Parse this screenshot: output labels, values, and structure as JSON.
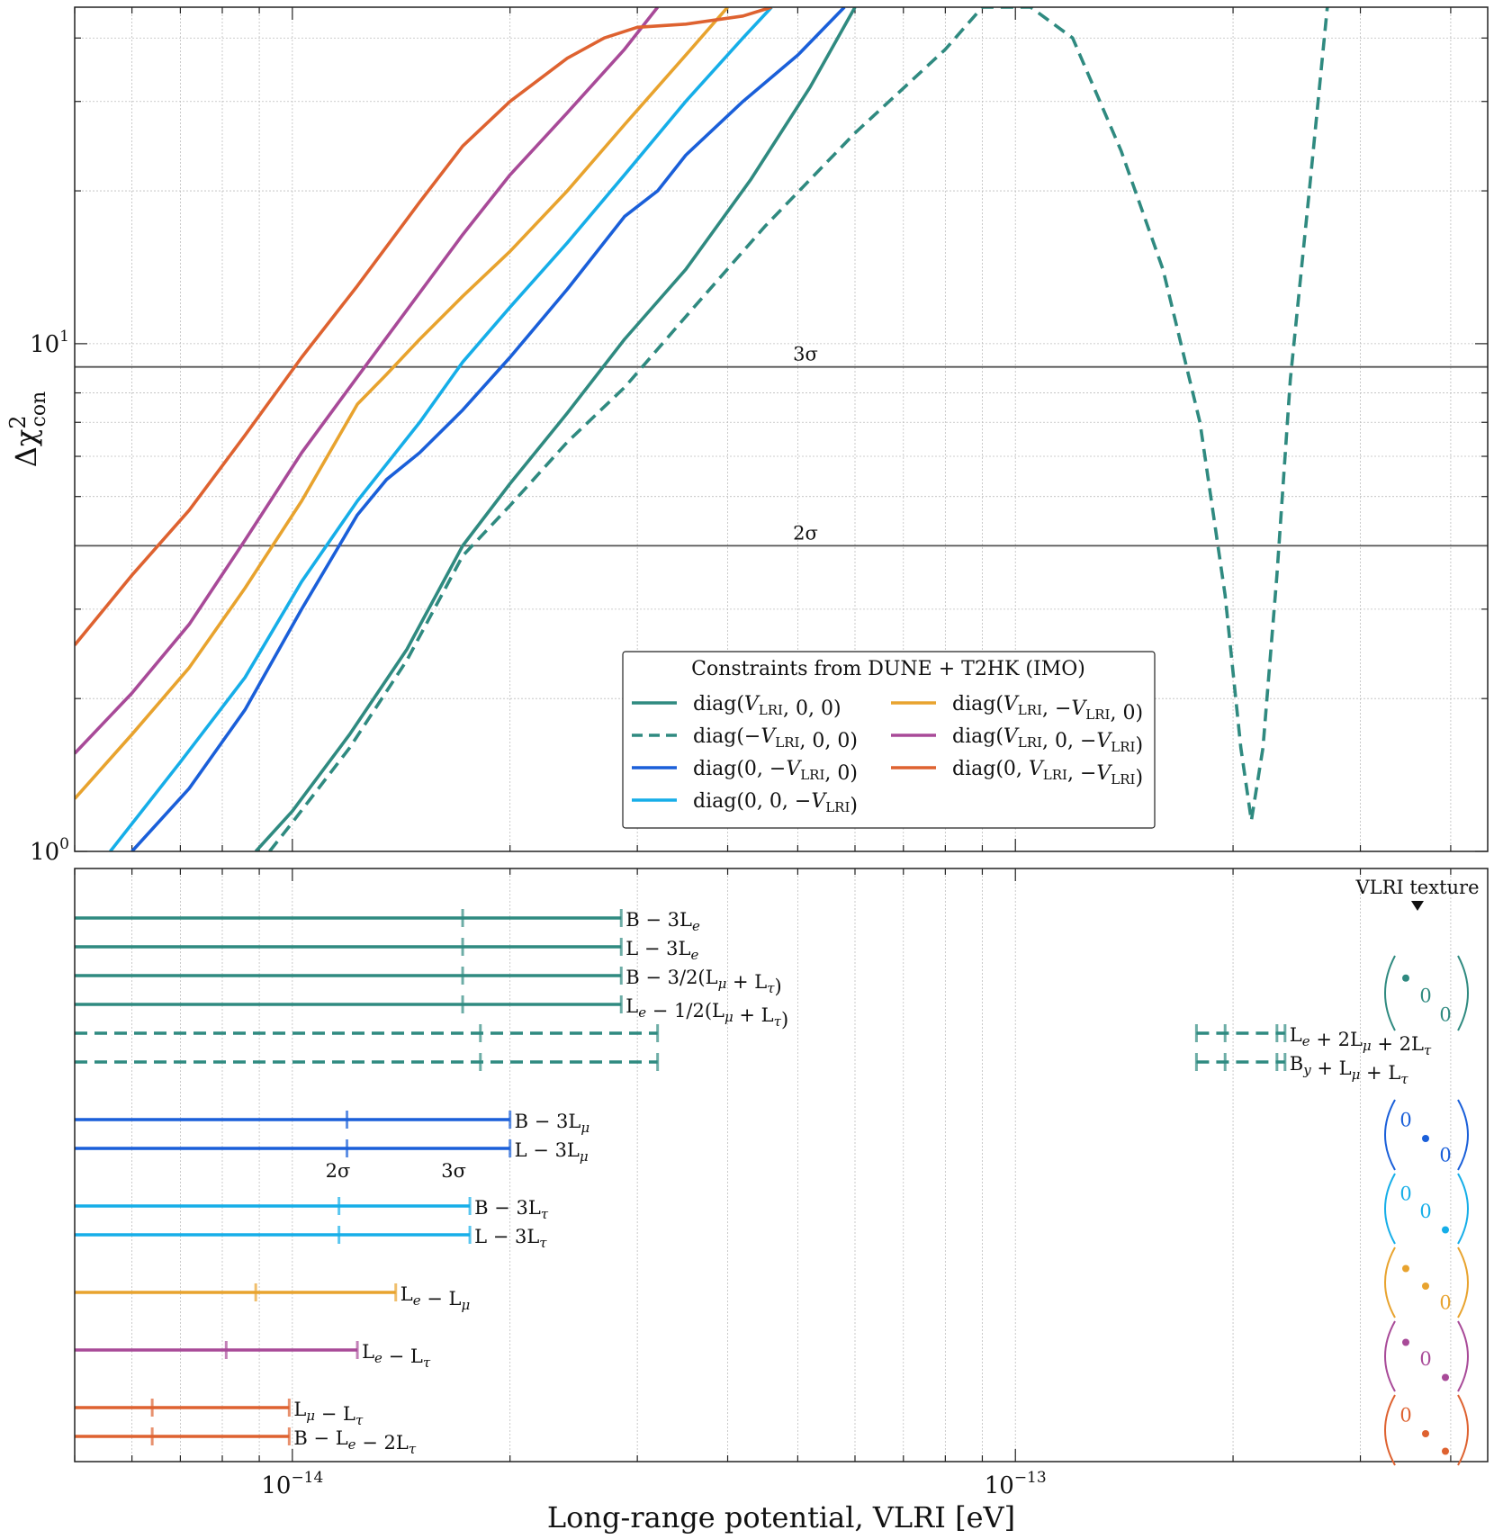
{
  "chart_data": [
    {
      "type": "line",
      "panel": "top",
      "xscale": "log",
      "yscale": "log",
      "xlim": [
        5e-15,
        4.5e-13
      ],
      "ylim": [
        1.0,
        46
      ],
      "ylabel": "Δχ²con",
      "grid": true,
      "y_ticks": [
        {
          "value": 1,
          "label": "10^0"
        },
        {
          "value": 10,
          "label": "10^1"
        }
      ],
      "hlines": [
        {
          "y": 9,
          "label": "3σ"
        },
        {
          "y": 4,
          "label": "2σ"
        }
      ],
      "legend": {
        "title": "Constraints from DUNE + T2HK (IMO)",
        "placement": "lower-center"
      },
      "series": [
        {
          "name": "diag(VLRI, 0, 0)",
          "color": "#2f8a80",
          "dash": "solid",
          "points": [
            [
              8.9e-15,
              1.0
            ],
            [
              1e-14,
              1.2
            ],
            [
              1.2e-14,
              1.7
            ],
            [
              1.44e-14,
              2.5
            ],
            [
              1.72e-14,
              4.0
            ],
            [
              2e-14,
              5.3
            ],
            [
              2.4e-14,
              7.3
            ],
            [
              2.88e-14,
              10.2
            ],
            [
              3.5e-14,
              14.0
            ],
            [
              4.3e-14,
              21.0
            ],
            [
              5.2e-14,
              32.0
            ],
            [
              6e-14,
              46.0
            ]
          ]
        },
        {
          "name": "diag(−VLRI, 0, 0)",
          "color": "#2f8a80",
          "dash": "dashed",
          "points": [
            [
              9.3e-15,
              1.0
            ],
            [
              1e-14,
              1.14
            ],
            [
              1.2e-14,
              1.6
            ],
            [
              1.44e-14,
              2.38
            ],
            [
              1.72e-14,
              3.82
            ],
            [
              2e-14,
              4.8
            ],
            [
              2.4e-14,
              6.4
            ],
            [
              2.88e-14,
              8.2
            ],
            [
              3.5e-14,
              11.3
            ],
            [
              4.5e-14,
              17.0
            ],
            [
              6e-14,
              26.0
            ],
            [
              8e-14,
              38.0
            ],
            [
              9e-14,
              46.0
            ],
            [
              1.05e-13,
              46.0
            ],
            [
              1.2e-13,
              40.0
            ],
            [
              1.4e-13,
              24.0
            ],
            [
              1.6e-13,
              14.0
            ],
            [
              1.8e-13,
              7.0
            ],
            [
              1.95e-13,
              3.2
            ],
            [
              2.05e-13,
              1.6
            ],
            [
              2.12e-13,
              1.15
            ],
            [
              2.2e-13,
              1.6
            ],
            [
              2.3e-13,
              3.5
            ],
            [
              2.4e-13,
              8.5
            ],
            [
              2.55e-13,
              20.0
            ],
            [
              2.7e-13,
              46.0
            ]
          ]
        },
        {
          "name": "diag(0, −VLRI, 0)",
          "color": "#1a5fd9",
          "dash": "solid",
          "points": [
            [
              6e-15,
              1.0
            ],
            [
              7.2e-15,
              1.33
            ],
            [
              8.6e-15,
              1.9
            ],
            [
              1.03e-14,
              3.0
            ],
            [
              1.23e-14,
              4.6
            ],
            [
              1.35e-14,
              5.4
            ],
            [
              1.5e-14,
              6.1
            ],
            [
              1.72e-14,
              7.4
            ],
            [
              2e-14,
              9.4
            ],
            [
              2.4e-14,
              12.8
            ],
            [
              2.88e-14,
              17.8
            ],
            [
              3.2e-14,
              20.0
            ],
            [
              3.5e-14,
              23.5
            ],
            [
              4.2e-14,
              30.0
            ],
            [
              5e-14,
              37.0
            ],
            [
              5.8e-14,
              46.0
            ]
          ]
        },
        {
          "name": "diag(0, 0, −VLRI)",
          "color": "#16aee8",
          "dash": "solid",
          "points": [
            [
              5.6e-15,
              1.0
            ],
            [
              7e-15,
              1.5
            ],
            [
              8.6e-15,
              2.2
            ],
            [
              1.03e-14,
              3.4
            ],
            [
              1.23e-14,
              4.9
            ],
            [
              1.5e-14,
              7.0
            ],
            [
              1.72e-14,
              9.2
            ],
            [
              2e-14,
              11.8
            ],
            [
              2.4e-14,
              15.8
            ],
            [
              2.88e-14,
              21.5
            ],
            [
              3.5e-14,
              30.0
            ],
            [
              4.2e-14,
              40.0
            ],
            [
              4.6e-14,
              46.0
            ]
          ]
        },
        {
          "name": "diag(VLRI, −VLRI, 0)",
          "color": "#e8a32e",
          "dash": "solid",
          "points": [
            [
              5e-15,
              1.27
            ],
            [
              6e-15,
              1.7
            ],
            [
              7.2e-15,
              2.3
            ],
            [
              8.6e-15,
              3.3
            ],
            [
              1.03e-14,
              4.9
            ],
            [
              1.23e-14,
              7.6
            ],
            [
              1.35e-14,
              8.7
            ],
            [
              1.5e-14,
              10.2
            ],
            [
              1.72e-14,
              12.4
            ],
            [
              2e-14,
              15.2
            ],
            [
              2.4e-14,
              20.0
            ],
            [
              2.88e-14,
              27.0
            ],
            [
              3.5e-14,
              37.0
            ],
            [
              4e-14,
              46.0
            ]
          ]
        },
        {
          "name": "diag(VLRI, 0, −VLRI)",
          "color": "#a84a98",
          "dash": "solid",
          "points": [
            [
              5e-15,
              1.56
            ],
            [
              6e-15,
              2.05
            ],
            [
              7.2e-15,
              2.8
            ],
            [
              8.6e-15,
              4.1
            ],
            [
              1.03e-14,
              6.1
            ],
            [
              1.23e-14,
              8.6
            ],
            [
              1.5e-14,
              12.6
            ],
            [
              1.72e-14,
              16.4
            ],
            [
              2e-14,
              21.5
            ],
            [
              2.4e-14,
              28.5
            ],
            [
              2.88e-14,
              38.0
            ],
            [
              3.2e-14,
              46.0
            ]
          ]
        },
        {
          "name": "diag(0, VLRI, −VLRI)",
          "color": "#de6230",
          "dash": "solid",
          "points": [
            [
              5e-15,
              2.55
            ],
            [
              6e-15,
              3.5
            ],
            [
              7.2e-15,
              4.7
            ],
            [
              8.6e-15,
              6.6
            ],
            [
              1.03e-14,
              9.4
            ],
            [
              1.23e-14,
              13.0
            ],
            [
              1.5e-14,
              19.0
            ],
            [
              1.72e-14,
              24.5
            ],
            [
              2e-14,
              30.0
            ],
            [
              2.4e-14,
              36.5
            ],
            [
              2.7e-14,
              40.0
            ],
            [
              3e-14,
              42.0
            ],
            [
              3.5e-14,
              42.6
            ],
            [
              4.2e-14,
              44.2
            ],
            [
              4.6e-14,
              46.0
            ]
          ]
        }
      ]
    },
    {
      "type": "range",
      "panel": "bottom",
      "xscale": "log",
      "xlim": [
        5e-15,
        4.5e-13
      ],
      "xlabel": "Long-range potential, VLRI [eV]",
      "x_ticks": [
        {
          "value": 1e-14,
          "label": "10^−14"
        },
        {
          "value": 1e-13,
          "label": "10^−13"
        }
      ],
      "texture_header": "VLRI texture",
      "sigma_labels": [
        {
          "text": "2σ",
          "x": 1.19e-14
        },
        {
          "text": "3σ",
          "x": 1.72e-14
        }
      ],
      "bars": [
        {
          "label": "B − 3Le",
          "color": "#2f8a80",
          "dash": "solid",
          "end": 2.85e-14,
          "sigma2": 1.72e-14,
          "sigma3": 2.85e-14
        },
        {
          "label": "L − 3Le",
          "color": "#2f8a80",
          "dash": "solid",
          "end": 2.85e-14,
          "sigma2": 1.72e-14,
          "sigma3": 2.85e-14
        },
        {
          "label": "B − 3/2(Lμ + Lτ)",
          "color": "#2f8a80",
          "dash": "solid",
          "end": 2.85e-14,
          "sigma2": 1.72e-14,
          "sigma3": 2.85e-14
        },
        {
          "label": "Le − 1/2(Lμ + Lτ)",
          "color": "#2f8a80",
          "dash": "solid",
          "end": 2.85e-14,
          "sigma2": 1.72e-14,
          "sigma3": 2.85e-14
        },
        {
          "label": "Le + 2Lμ + 2Lτ",
          "color": "#2f8a80",
          "dash": "dashed",
          "end": 3.2e-14,
          "sigma2": 1.82e-14,
          "sigma3": 3.2e-14,
          "island": [
            1.78e-13,
            2.36e-13
          ]
        },
        {
          "label": "By + Lμ + Lτ",
          "color": "#2f8a80",
          "dash": "dashed",
          "end": 3.2e-14,
          "sigma2": 1.82e-14,
          "sigma3": 3.2e-14,
          "island": [
            1.78e-13,
            2.36e-13
          ]
        },
        {
          "label": "B − 3Lμ",
          "color": "#1a5fd9",
          "dash": "solid",
          "end": 2e-14,
          "sigma2": 1.19e-14,
          "sigma3": 2e-14
        },
        {
          "label": "L − 3Lμ",
          "color": "#1a5fd9",
          "dash": "solid",
          "end": 2e-14,
          "sigma2": 1.19e-14,
          "sigma3": 2e-14
        },
        {
          "label": "B − 3Lτ",
          "color": "#16aee8",
          "dash": "solid",
          "end": 1.76e-14,
          "sigma2": 1.16e-14,
          "sigma3": 1.76e-14
        },
        {
          "label": "L − 3Lτ",
          "color": "#16aee8",
          "dash": "solid",
          "end": 1.76e-14,
          "sigma2": 1.16e-14,
          "sigma3": 1.76e-14
        },
        {
          "label": "Le − Lμ",
          "color": "#e8a32e",
          "dash": "solid",
          "end": 1.39e-14,
          "sigma2": 8.9e-15,
          "sigma3": 1.39e-14
        },
        {
          "label": "Le − Lτ",
          "color": "#a84a98",
          "dash": "solid",
          "end": 1.23e-14,
          "sigma2": 8.1e-15,
          "sigma3": 1.23e-14
        },
        {
          "label": "Lμ − Lτ",
          "color": "#de6230",
          "dash": "solid",
          "end": 9.9e-15,
          "sigma2": 6.4e-15,
          "sigma3": 9.9e-15
        },
        {
          "label": "B − Le − 2Lτ",
          "color": "#de6230",
          "dash": "solid",
          "end": 9.9e-15,
          "sigma2": 6.4e-15,
          "sigma3": 9.9e-15
        }
      ],
      "textures": [
        {
          "color": "#2f8a80",
          "zero_text": "0",
          "dot_rows": [
            1
          ],
          "zero_rows": [
            2,
            3
          ]
        },
        {
          "color": "#1a5fd9",
          "zero_text": "0",
          "dot_rows": [
            2
          ],
          "zero_rows": [
            1,
            3
          ]
        },
        {
          "color": "#16aee8",
          "zero_text": "0",
          "dot_rows": [
            3
          ],
          "zero_rows": [
            1,
            2
          ]
        },
        {
          "color": "#e8a32e",
          "zero_text": "0",
          "dot_rows": [
            1,
            2
          ],
          "zero_rows": [
            3
          ]
        },
        {
          "color": "#a84a98",
          "zero_text": "0",
          "dot_rows": [
            1,
            3
          ],
          "zero_rows": [
            2
          ]
        },
        {
          "color": "#de6230",
          "zero_text": "0",
          "dot_rows": [
            2,
            3
          ],
          "zero_rows": [
            1
          ]
        }
      ]
    }
  ]
}
